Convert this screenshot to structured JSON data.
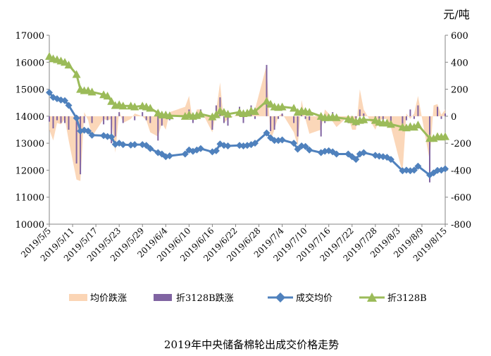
{
  "chart_data": {
    "type": "line",
    "title": "2019年中央储备棉轮出成交价格走势",
    "y_right_unit": "元/吨",
    "y_left_range": [
      10000,
      17000
    ],
    "y_left_ticks": [
      "10000",
      "11000",
      "12000",
      "13000",
      "14000",
      "15000",
      "16000",
      "17000"
    ],
    "y_right_range": [
      -800,
      600
    ],
    "y_right_ticks": [
      "-800",
      "-600",
      "-400",
      "-200",
      "0",
      "200",
      "400",
      "600"
    ],
    "x_tick_labels": [
      "2019/5/5",
      "2019/5/11",
      "2019/5/17",
      "2019/5/23",
      "2019/5/29",
      "2019/6/4",
      "2019/6/10",
      "2019/6/16",
      "2019/6/22",
      "2019/6/28",
      "2019/7/4",
      "2019/7/10",
      "2019/7/16",
      "2019/7/22",
      "2019/7/28",
      "2019/8/3",
      "2019/8/9",
      "2019/8/15"
    ],
    "legend": [
      "均价跌涨",
      "折3128B跌涨",
      "成交均价",
      "折3128B"
    ],
    "colors": {
      "avg_change": "#fbd5b5",
      "b3128_change": "#8064a2",
      "avg_price": "#4f81bd",
      "b3128": "#9bbb59",
      "axis": "#868686"
    },
    "series": [
      {
        "name": "成交均价",
        "axis": "left",
        "x": [
          0,
          1,
          2,
          3,
          4,
          5,
          7,
          8,
          9,
          10,
          11,
          14,
          15,
          16,
          17,
          18,
          19,
          21,
          22,
          24,
          25,
          26,
          28,
          29,
          30,
          31,
          35,
          36,
          37,
          38,
          39,
          42,
          43,
          44,
          45,
          46,
          49,
          50,
          51,
          52,
          53,
          56,
          57,
          58,
          59,
          60,
          63,
          64,
          65,
          66,
          67,
          70,
          71,
          72,
          73,
          74,
          77,
          78,
          79,
          80,
          81,
          84,
          85,
          86,
          87,
          88,
          91,
          92,
          93,
          94,
          95,
          98,
          99,
          100,
          101,
          102
        ],
        "values": [
          14880,
          14700,
          14650,
          14600,
          14580,
          14400,
          13930,
          13450,
          13480,
          13450,
          13300,
          13280,
          13250,
          13230,
          12960,
          13000,
          12950,
          12930,
          12950,
          12950,
          12920,
          12800,
          12650,
          12600,
          12500,
          12530,
          12600,
          12750,
          12700,
          12750,
          12800,
          12680,
          12720,
          12970,
          12920,
          12900,
          12920,
          12900,
          12920,
          12950,
          13000,
          13380,
          13200,
          13100,
          13100,
          13120,
          13000,
          12780,
          12900,
          12880,
          12750,
          12650,
          12700,
          12720,
          12680,
          12600,
          12600,
          12500,
          12400,
          12600,
          12650,
          12550,
          12520,
          12500,
          12480,
          12400,
          11980,
          12000,
          11980,
          12000,
          12150,
          11820,
          11900,
          11990,
          12000,
          12050
        ]
      },
      {
        "name": "折3128B",
        "axis": "left",
        "x": [
          0,
          1,
          2,
          3,
          4,
          5,
          7,
          8,
          9,
          10,
          11,
          14,
          15,
          16,
          17,
          18,
          19,
          21,
          22,
          24,
          25,
          26,
          28,
          29,
          30,
          31,
          35,
          36,
          37,
          38,
          39,
          42,
          43,
          44,
          45,
          46,
          49,
          50,
          51,
          52,
          53,
          56,
          57,
          58,
          59,
          60,
          63,
          64,
          65,
          66,
          67,
          70,
          71,
          72,
          73,
          74,
          77,
          78,
          79,
          80,
          81,
          84,
          85,
          86,
          87,
          88,
          91,
          92,
          93,
          94,
          95,
          98,
          99,
          100,
          101,
          102
        ],
        "values": [
          16220,
          16130,
          16100,
          16050,
          16000,
          15900,
          15550,
          15000,
          14950,
          14950,
          14900,
          14800,
          14750,
          14550,
          14400,
          14430,
          14380,
          14380,
          14350,
          14380,
          14350,
          14300,
          14120,
          14050,
          14050,
          14020,
          14000,
          14050,
          14000,
          14030,
          14080,
          13980,
          14060,
          14200,
          14150,
          14080,
          14150,
          14100,
          14120,
          14200,
          14180,
          14560,
          14450,
          14350,
          14330,
          14350,
          14300,
          14150,
          14200,
          14180,
          14150,
          14000,
          13950,
          13950,
          13980,
          13950,
          13900,
          13870,
          13800,
          13850,
          13870,
          13850,
          13780,
          13750,
          13750,
          13700,
          13600,
          13570,
          13620,
          13600,
          13680,
          13180,
          13180,
          13250,
          13230,
          13250
        ]
      },
      {
        "name": "均价跌涨",
        "axis": "right",
        "type": "area",
        "x": [
          0,
          1,
          2,
          3,
          4,
          5,
          7,
          8,
          9,
          10,
          11,
          14,
          15,
          16,
          17,
          18,
          19,
          21,
          22,
          24,
          25,
          26,
          28,
          29,
          30,
          31,
          35,
          36,
          37,
          38,
          39,
          42,
          43,
          44,
          45,
          46,
          49,
          50,
          51,
          52,
          53,
          56,
          57,
          58,
          59,
          60,
          63,
          64,
          65,
          66,
          67,
          70,
          71,
          72,
          73,
          74,
          77,
          78,
          79,
          80,
          81,
          84,
          85,
          86,
          87,
          88,
          91,
          92,
          93,
          94,
          95,
          98,
          99,
          100,
          101,
          102
        ],
        "values": [
          -100,
          -180,
          -50,
          -60,
          -20,
          -180,
          -470,
          -480,
          30,
          -30,
          -150,
          -20,
          -30,
          -20,
          -270,
          40,
          -50,
          -20,
          20,
          0,
          -30,
          -120,
          -150,
          -50,
          -100,
          30,
          70,
          150,
          -50,
          50,
          50,
          -120,
          40,
          250,
          -50,
          -20,
          20,
          -20,
          20,
          30,
          50,
          380,
          -180,
          -100,
          0,
          20,
          -120,
          -220,
          120,
          -20,
          -130,
          -100,
          50,
          20,
          -40,
          -80,
          0,
          -100,
          -100,
          200,
          50,
          -100,
          -30,
          -20,
          -20,
          -80,
          -420,
          20,
          -20,
          20,
          150,
          -330,
          80,
          90,
          10,
          50
        ]
      },
      {
        "name": "折3128B跌涨",
        "axis": "right",
        "type": "bar",
        "x": [
          0,
          1,
          2,
          3,
          4,
          5,
          7,
          8,
          9,
          10,
          11,
          14,
          15,
          16,
          17,
          18,
          19,
          21,
          22,
          24,
          25,
          26,
          28,
          29,
          30,
          31,
          35,
          36,
          37,
          38,
          39,
          42,
          43,
          44,
          45,
          46,
          49,
          50,
          51,
          52,
          53,
          56,
          57,
          58,
          59,
          60,
          63,
          64,
          65,
          66,
          67,
          70,
          71,
          72,
          73,
          74,
          77,
          78,
          79,
          80,
          81,
          84,
          85,
          86,
          87,
          88,
          91,
          92,
          93,
          94,
          95,
          98,
          99,
          100,
          101,
          102
        ],
        "values": [
          -40,
          -90,
          -30,
          -50,
          -50,
          -100,
          -350,
          -430,
          -50,
          0,
          -50,
          -60,
          -30,
          -200,
          -150,
          30,
          -50,
          0,
          -30,
          30,
          -30,
          -50,
          -180,
          -70,
          0,
          -30,
          -10,
          50,
          -50,
          30,
          50,
          -100,
          80,
          140,
          -50,
          -70,
          70,
          -50,
          20,
          80,
          -20,
          380,
          -110,
          -100,
          -20,
          20,
          -50,
          -150,
          50,
          -20,
          -30,
          -150,
          -50,
          0,
          30,
          -30,
          -50,
          -30,
          -70,
          50,
          20,
          -20,
          -70,
          -30,
          0,
          -50,
          -100,
          -30,
          50,
          -20,
          80,
          -490,
          0,
          70,
          -20,
          20
        ]
      }
    ]
  }
}
